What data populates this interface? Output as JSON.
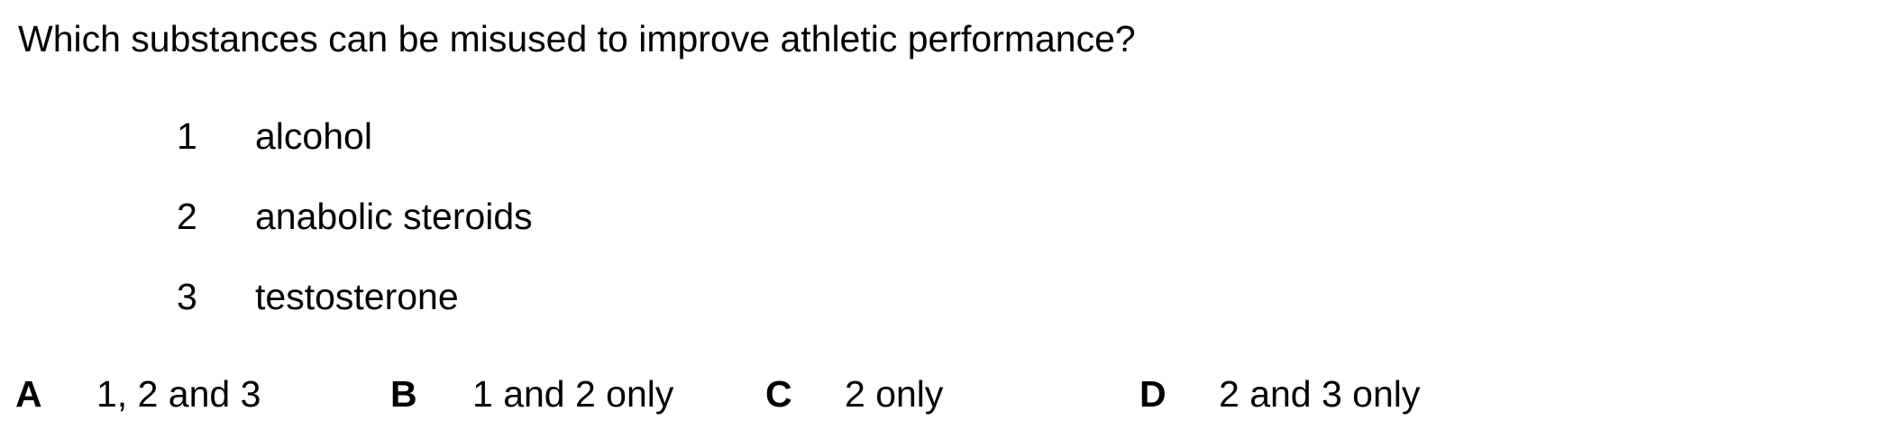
{
  "question": "Which substances can be misused to improve athletic performance?",
  "statements": [
    {
      "number": "1",
      "text": "alcohol"
    },
    {
      "number": "2",
      "text": "anabolic steroids"
    },
    {
      "number": "3",
      "text": "testosterone"
    }
  ],
  "options": [
    {
      "letter": "A",
      "text": "1, 2 and 3"
    },
    {
      "letter": "B",
      "text": "1 and 2 only"
    },
    {
      "letter": "C",
      "text": "2 only"
    },
    {
      "letter": "D",
      "text": "2 and 3 only"
    }
  ]
}
